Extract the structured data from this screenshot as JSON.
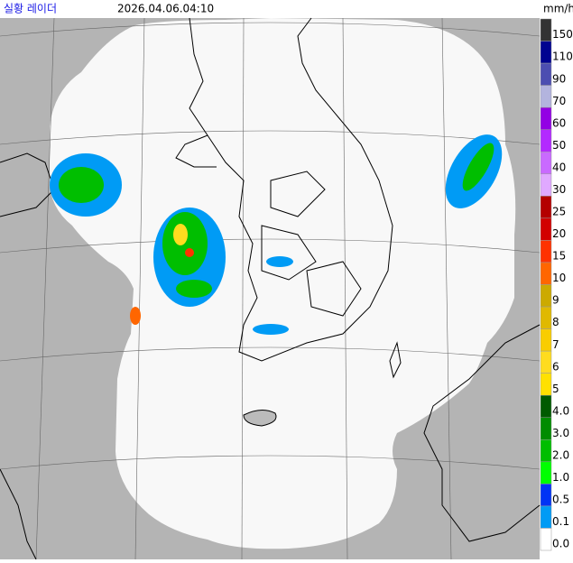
{
  "header": {
    "title": "실황 레이더",
    "time": "2026.04.06.04:10"
  },
  "legend": {
    "unit": "mm/h",
    "items": [
      {
        "label": "150",
        "color": "#333333"
      },
      {
        "label": "110",
        "color": "#000390"
      },
      {
        "label": "90",
        "color": "#4c4eb1"
      },
      {
        "label": "70",
        "color": "#b3b4de"
      },
      {
        "label": "60",
        "color": "#9300e4"
      },
      {
        "label": "50",
        "color": "#b329ff"
      },
      {
        "label": "40",
        "color": "#c96aff"
      },
      {
        "label": "30",
        "color": "#e0a9ff"
      },
      {
        "label": "25",
        "color": "#b40000"
      },
      {
        "label": "20",
        "color": "#d20000"
      },
      {
        "label": "15",
        "color": "#ff3200"
      },
      {
        "label": "10",
        "color": "#ff6600"
      },
      {
        "label": "9",
        "color": "#ccaa00"
      },
      {
        "label": "8",
        "color": "#e0b900"
      },
      {
        "label": "7",
        "color": "#f9cd00"
      },
      {
        "label": "6",
        "color": "#ffdc1f"
      },
      {
        "label": "5",
        "color": "#ffe100"
      },
      {
        "label": "4.0",
        "color": "#005a00"
      },
      {
        "label": "3.0",
        "color": "#008c00"
      },
      {
        "label": "2.0",
        "color": "#00be00"
      },
      {
        "label": "1.0",
        "color": "#00ff00"
      },
      {
        "label": "0.5",
        "color": "#0033f5"
      },
      {
        "label": "0.1",
        "color": "#009bf5"
      },
      {
        "label": "0.0",
        "color": "#ffffff"
      }
    ]
  }
}
